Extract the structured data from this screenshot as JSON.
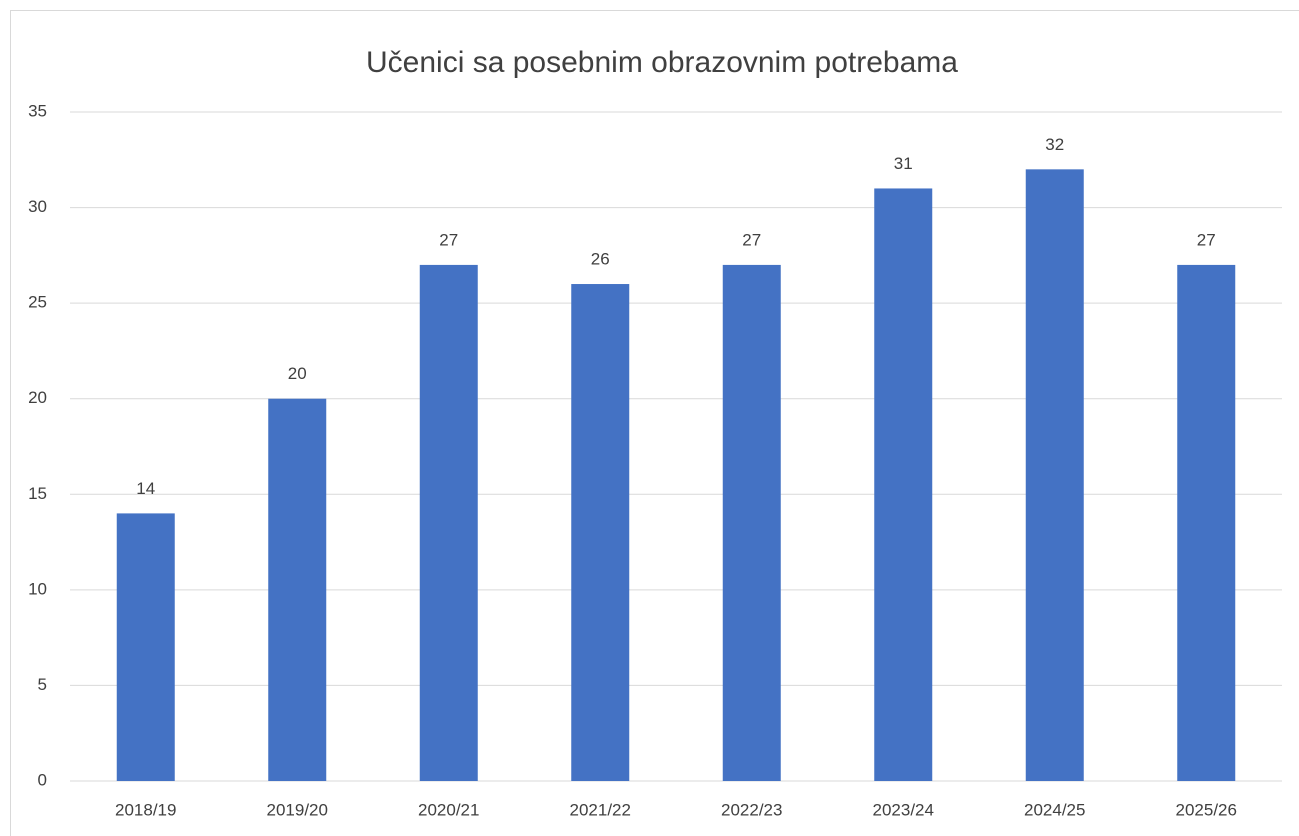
{
  "chart_data": {
    "type": "bar",
    "title": "Učenici sa posebnim obrazovnim potrebama",
    "categories": [
      "2018/19",
      "2019/20",
      "2020/21",
      "2021/22",
      "2022/23",
      "2023/24",
      "2024/25",
      "2025/26"
    ],
    "values": [
      14,
      20,
      27,
      26,
      27,
      31,
      32,
      27
    ],
    "color": "#4472c4",
    "ylim": [
      0,
      35
    ],
    "yticks": [
      0,
      5,
      10,
      15,
      20,
      25,
      30,
      35
    ],
    "grid": true,
    "data_labels": true
  }
}
